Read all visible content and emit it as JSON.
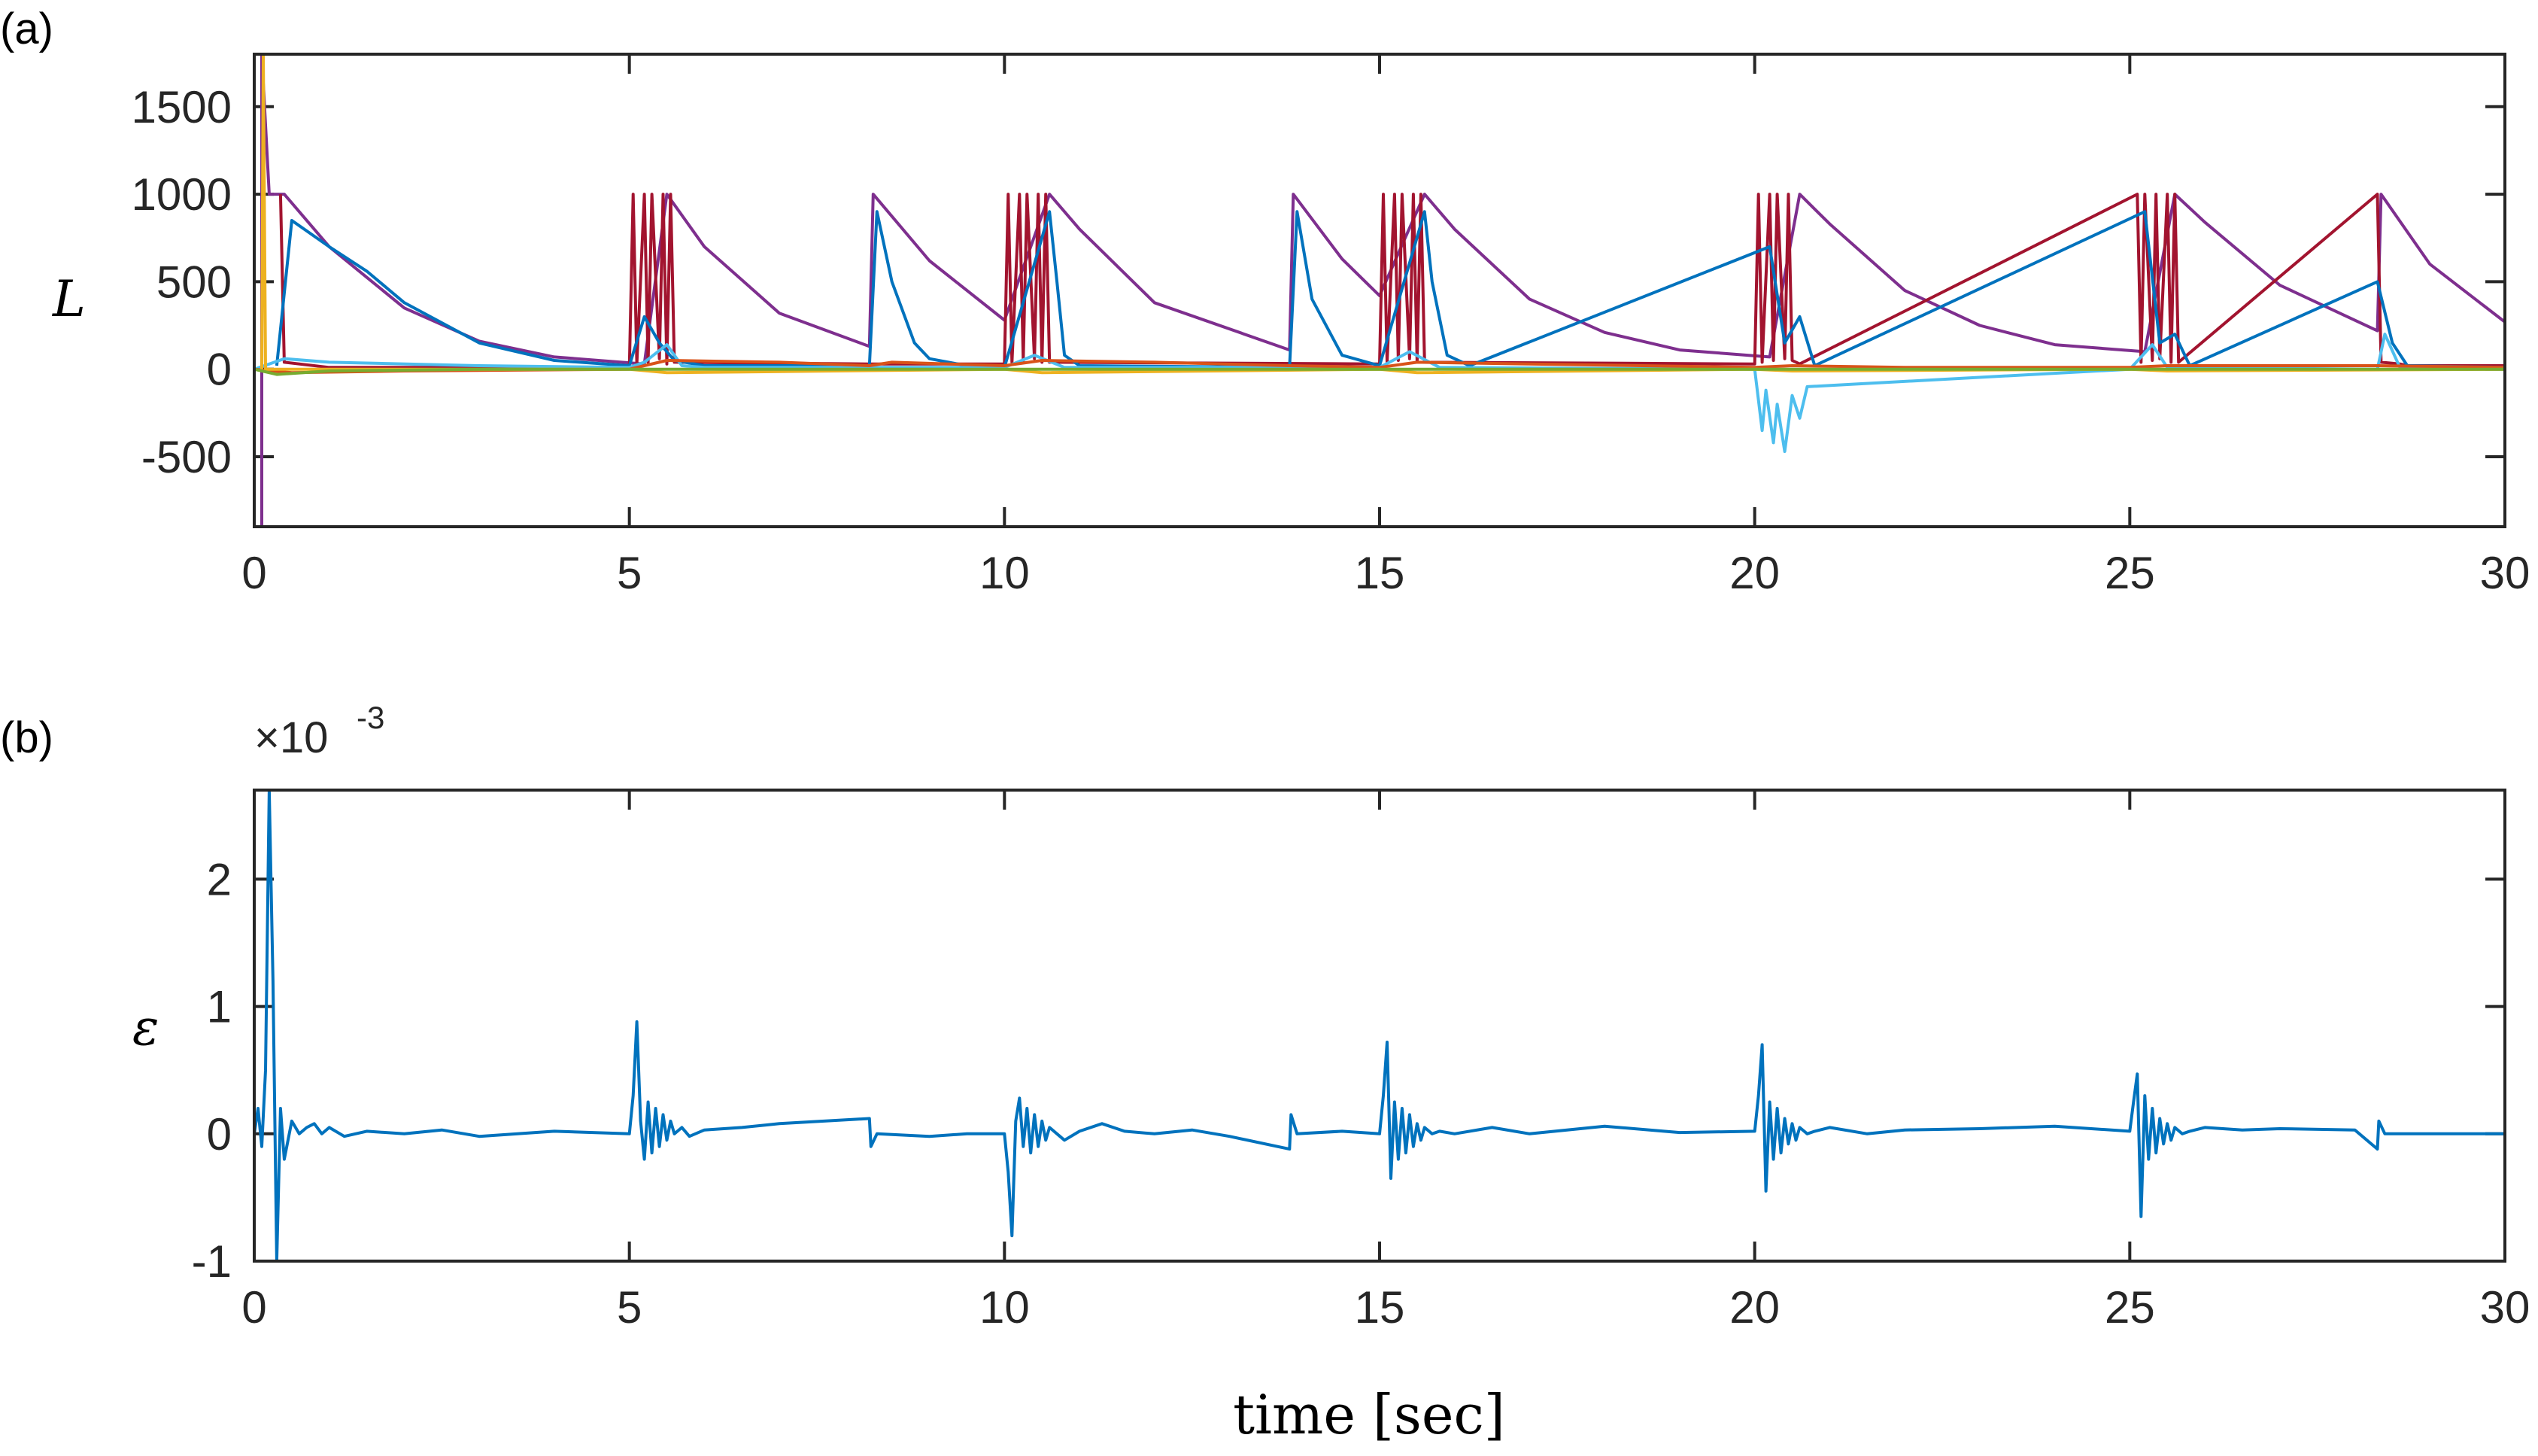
{
  "chart_data": [
    {
      "type": "line",
      "panel_label": "(a)",
      "ylabel": "L",
      "xlim": [
        0,
        30
      ],
      "ylim": [
        -900,
        1800
      ],
      "xticks": [
        0,
        5,
        10,
        15,
        20,
        25,
        30
      ],
      "xtick_labels": [
        "0",
        "5",
        "10",
        "15",
        "20",
        "25",
        "30"
      ],
      "yticks": [
        -500,
        0,
        500,
        1000,
        1500
      ],
      "ytick_labels": [
        "-500",
        "0",
        "500",
        "1000",
        "1500"
      ],
      "series": [
        {
          "name": "purple",
          "color": "#7E2F8E",
          "x": [
            0.1,
            0.1,
            0.2,
            0.2,
            0.4,
            1,
            2,
            3,
            4,
            5.2,
            5.5,
            6,
            7,
            8.2,
            8.25,
            9,
            10,
            10.6,
            11,
            12,
            13.8,
            13.85,
            14.5,
            15,
            15.6,
            16,
            17,
            18,
            19,
            20.2,
            20.6,
            21,
            22,
            23,
            24,
            25.2,
            25.6,
            26,
            27,
            28.3,
            28.35,
            29,
            30
          ],
          "y": [
            -900,
            1800,
            1000,
            1000,
            1000,
            700,
            350,
            160,
            70,
            30,
            1000,
            700,
            320,
            130,
            1000,
            620,
            280,
            1000,
            800,
            380,
            110,
            1000,
            630,
            420,
            1000,
            800,
            400,
            210,
            110,
            70,
            1000,
            830,
            450,
            250,
            140,
            100,
            1000,
            840,
            480,
            220,
            1000,
            600,
            270
          ]
        },
        {
          "name": "dark-red",
          "color": "#A2142F",
          "x": [
            0.35,
            0.4,
            1,
            5,
            5.05,
            5.1,
            5.2,
            5.25,
            5.3,
            5.4,
            5.45,
            5.5,
            5.55,
            5.6,
            8.2,
            10,
            10.05,
            10.1,
            10.2,
            10.25,
            10.3,
            10.4,
            10.45,
            10.5,
            10.55,
            10.6,
            15,
            15.05,
            15.1,
            15.2,
            15.25,
            15.3,
            15.4,
            15.45,
            15.5,
            15.55,
            15.6,
            20,
            20.05,
            20.1,
            20.2,
            20.25,
            20.3,
            20.4,
            20.45,
            20.5,
            20.6,
            25.1,
            25.15,
            25.2,
            25.3,
            25.35,
            25.4,
            25.5,
            25.55,
            25.6,
            25.65,
            28.3,
            28.35,
            28.6,
            28.7,
            30
          ],
          "y": [
            1000,
            40,
            10,
            10,
            1000,
            30,
            1000,
            40,
            1000,
            60,
            1000,
            30,
            1000,
            40,
            30,
            30,
            1000,
            40,
            1000,
            50,
            1000,
            60,
            1000,
            40,
            1000,
            40,
            30,
            1000,
            40,
            1000,
            50,
            1000,
            60,
            1000,
            40,
            1000,
            40,
            30,
            1000,
            40,
            1000,
            50,
            1000,
            60,
            1000,
            50,
            30,
            1000,
            40,
            1000,
            50,
            1000,
            60,
            1000,
            40,
            1000,
            40,
            1000,
            40,
            30,
            20,
            20
          ]
        },
        {
          "name": "blue",
          "color": "#0072BD",
          "x": [
            0.3,
            0.5,
            1,
            1.5,
            2,
            3,
            4,
            5,
            5.2,
            5.4,
            5.6,
            6,
            8.2,
            8.3,
            8.5,
            8.8,
            9,
            9.5,
            10,
            10.6,
            10.7,
            10.8,
            11,
            13.8,
            13.9,
            14.1,
            14.5,
            15,
            15.6,
            15.7,
            15.9,
            16.2,
            20.2,
            20.4,
            20.6,
            20.8,
            25.2,
            25.4,
            25.6,
            25.8,
            28.3,
            28.5,
            28.7,
            30
          ],
          "y": [
            20,
            850,
            700,
            560,
            380,
            150,
            50,
            20,
            300,
            150,
            50,
            20,
            20,
            900,
            500,
            150,
            60,
            20,
            10,
            900,
            500,
            80,
            20,
            10,
            900,
            400,
            80,
            20,
            900,
            500,
            80,
            20,
            700,
            150,
            300,
            20,
            900,
            150,
            200,
            20,
            500,
            150,
            20,
            10
          ]
        },
        {
          "name": "light-blue",
          "color": "#4DBEEE",
          "x": [
            0,
            0.4,
            1,
            3,
            5,
            5.2,
            5.5,
            5.7,
            6,
            10,
            10.4,
            10.8,
            15,
            15.4,
            15.8,
            20,
            20.1,
            20.15,
            20.25,
            20.3,
            20.4,
            20.5,
            20.6,
            20.7,
            25,
            25.3,
            25.5,
            28.3,
            28.4,
            28.6,
            30
          ],
          "y": [
            0,
            60,
            40,
            20,
            10,
            40,
            140,
            20,
            10,
            10,
            80,
            10,
            10,
            100,
            10,
            0,
            -350,
            -120,
            -420,
            -200,
            -470,
            -150,
            -280,
            -100,
            0,
            140,
            10,
            0,
            200,
            10,
            0
          ]
        },
        {
          "name": "orange",
          "color": "#D95319",
          "x": [
            0,
            0.5,
            2,
            5,
            5.5,
            7,
            8.2,
            8.5,
            10,
            10.5,
            12,
            13.8,
            15,
            15.5,
            17,
            20,
            20.5,
            22,
            25,
            25.5,
            28.3,
            30
          ],
          "y": [
            0,
            -20,
            -10,
            0,
            50,
            40,
            20,
            40,
            20,
            50,
            40,
            20,
            10,
            40,
            30,
            10,
            20,
            10,
            10,
            20,
            20,
            10
          ]
        },
        {
          "name": "yellow",
          "color": "#EDB120",
          "x": [
            0.1,
            0.12,
            0.15,
            0.2,
            1,
            5,
            5.5,
            10,
            10.5,
            15,
            15.5,
            20,
            20.5,
            25,
            25.5,
            30
          ],
          "y": [
            0,
            1800,
            0,
            0,
            0,
            0,
            -20,
            0,
            -20,
            0,
            -20,
            0,
            -10,
            0,
            -10,
            0
          ]
        },
        {
          "name": "green",
          "color": "#77AC30",
          "x": [
            0,
            0.3,
            1,
            3,
            5,
            30
          ],
          "y": [
            0,
            -30,
            -10,
            0,
            0,
            0
          ]
        }
      ]
    },
    {
      "type": "line",
      "panel_label": "(b)",
      "ylabel": "ε",
      "xlabel": "time [sec]",
      "exponent_label": "×10",
      "exponent_power": "-3",
      "xlim": [
        0,
        30
      ],
      "ylim": [
        -1,
        2.7
      ],
      "xticks": [
        0,
        5,
        10,
        15,
        20,
        25,
        30
      ],
      "xtick_labels": [
        "0",
        "5",
        "10",
        "15",
        "20",
        "25",
        "30"
      ],
      "yticks": [
        -1,
        0,
        1,
        2
      ],
      "ytick_labels": [
        "-1",
        "0",
        "1",
        "2"
      ],
      "series": [
        {
          "name": "epsilon",
          "color": "#0072BD",
          "x": [
            0,
            0.05,
            0.1,
            0.15,
            0.2,
            0.25,
            0.3,
            0.35,
            0.4,
            0.5,
            0.6,
            0.7,
            0.8,
            0.9,
            1,
            1.2,
            1.5,
            2,
            2.5,
            3,
            4,
            5,
            5.05,
            5.1,
            5.15,
            5.2,
            5.25,
            5.3,
            5.35,
            5.4,
            5.45,
            5.5,
            5.55,
            5.6,
            5.7,
            5.8,
            6,
            6.5,
            7,
            8.2,
            8.22,
            8.3,
            9,
            9.5,
            10,
            10.05,
            10.1,
            10.15,
            10.2,
            10.25,
            10.3,
            10.35,
            10.4,
            10.45,
            10.5,
            10.55,
            10.6,
            10.7,
            10.8,
            11,
            11.3,
            11.6,
            12,
            12.5,
            13,
            13.8,
            13.82,
            13.9,
            14.5,
            15,
            15.05,
            15.1,
            15.15,
            15.2,
            15.25,
            15.3,
            15.35,
            15.4,
            15.45,
            15.5,
            15.55,
            15.6,
            15.7,
            15.8,
            16,
            16.5,
            17,
            17.5,
            18,
            19,
            20,
            20.05,
            20.1,
            20.15,
            20.2,
            20.25,
            20.3,
            20.35,
            20.4,
            20.45,
            20.5,
            20.55,
            20.6,
            20.7,
            20.8,
            21,
            21.5,
            22,
            23,
            24,
            25,
            25.05,
            25.1,
            25.15,
            25.2,
            25.25,
            25.3,
            25.35,
            25.4,
            25.45,
            25.5,
            25.55,
            25.6,
            25.7,
            25.8,
            26,
            26.5,
            27,
            28,
            28.3,
            28.32,
            28.4,
            29,
            30
          ],
          "y": [
            0,
            0.2,
            -0.1,
            0.5,
            2.7,
            1.2,
            -1,
            0.2,
            -0.2,
            0.1,
            0,
            0.05,
            0.08,
            0,
            0.05,
            -0.02,
            0.02,
            0,
            0.03,
            -0.02,
            0.02,
            0,
            0.3,
            0.88,
            0.1,
            -0.2,
            0.25,
            -0.15,
            0.2,
            -0.1,
            0.15,
            -0.05,
            0.1,
            0,
            0.05,
            -0.02,
            0.03,
            0.05,
            0.08,
            0.12,
            -0.1,
            0,
            -0.02,
            0,
            0,
            -0.3,
            -0.8,
            0.1,
            0.28,
            -0.1,
            0.2,
            -0.15,
            0.15,
            -0.1,
            0.1,
            -0.05,
            0.05,
            0,
            -0.05,
            0.02,
            0.08,
            0.02,
            0,
            0.03,
            -0.02,
            -0.12,
            0.15,
            0,
            0.02,
            0,
            0.3,
            0.72,
            -0.35,
            0.25,
            -0.2,
            0.2,
            -0.15,
            0.15,
            -0.1,
            0.08,
            -0.05,
            0.05,
            0,
            0.02,
            0,
            0.05,
            0,
            0.03,
            0.06,
            0.01,
            0.02,
            0.3,
            0.7,
            -0.45,
            0.25,
            -0.2,
            0.2,
            -0.15,
            0.12,
            -0.08,
            0.08,
            -0.05,
            0.05,
            0,
            0.02,
            0.05,
            0,
            0.03,
            0.04,
            0.06,
            0.02,
            0.25,
            0.47,
            -0.65,
            0.3,
            -0.2,
            0.2,
            -0.15,
            0.12,
            -0.08,
            0.08,
            -0.05,
            0.05,
            0,
            0.02,
            0.05,
            0.03,
            0.04,
            0.03,
            -0.12,
            0.1,
            0,
            0,
            0
          ]
        }
      ]
    }
  ]
}
